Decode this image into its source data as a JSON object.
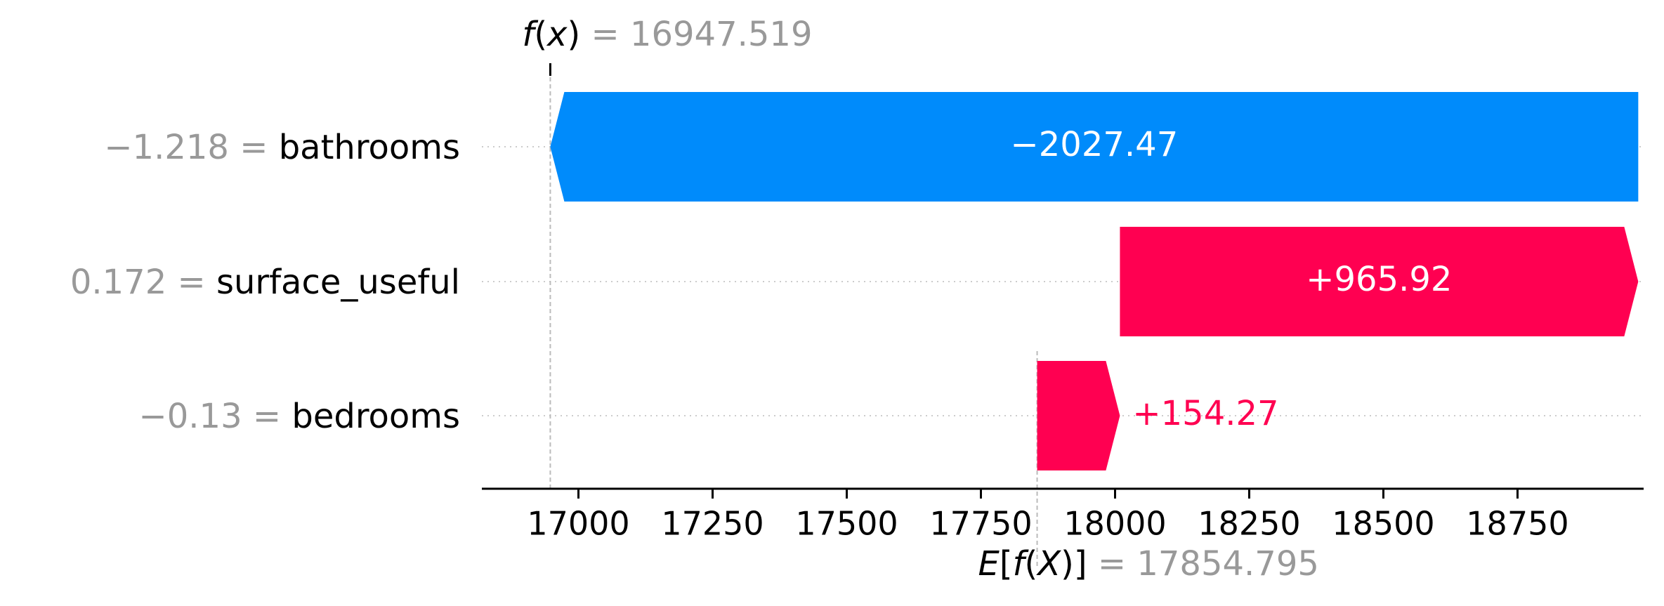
{
  "chart_data": {
    "type": "waterfall",
    "fx_label": "f(x)",
    "fx_value": "16947.519",
    "ex_label": "E[f(X)]",
    "ex_value": "17854.795",
    "base_value": 17854.795,
    "final_value": 16947.519,
    "features": [
      {
        "feature_value": "−1.218",
        "name": "bathrooms",
        "contribution": -2027.47,
        "label": "−2027.47"
      },
      {
        "feature_value": "0.172",
        "name": "surface_useful",
        "contribution": 965.92,
        "label": "+965.92"
      },
      {
        "feature_value": "−0.13",
        "name": "bedrooms",
        "contribution": 154.27,
        "label": "+154.27"
      }
    ],
    "x_ticks": [
      17000,
      17250,
      17500,
      17750,
      18000,
      18250,
      18500,
      18750
    ],
    "x_tick_labels": [
      "17000",
      "17250",
      "17500",
      "17750",
      "18000",
      "18250",
      "18500",
      "18750"
    ],
    "xlim": [
      16820,
      18985
    ],
    "colors": {
      "positive": "#ff0051",
      "negative": "#008bfb",
      "value_gray": "#999999",
      "text": "#000000"
    }
  }
}
